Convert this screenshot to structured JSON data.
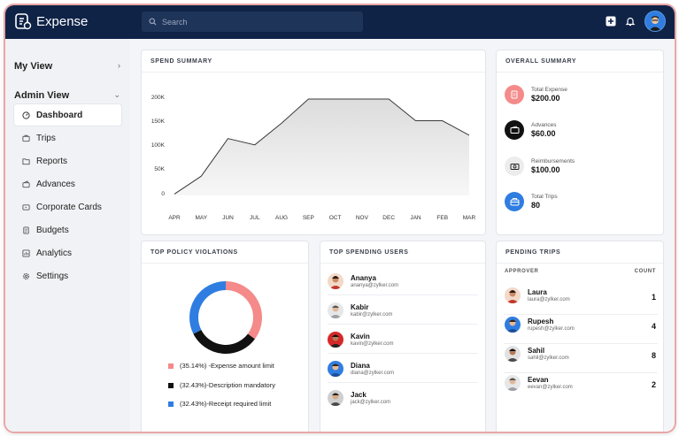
{
  "app": {
    "title": "Expense"
  },
  "search": {
    "placeholder": "Search"
  },
  "sidebar": {
    "my_view": "My View",
    "admin_view": "Admin View",
    "items": [
      {
        "label": "Dashboard",
        "icon": "dashboard-icon",
        "active": true
      },
      {
        "label": "Trips",
        "icon": "trips-icon"
      },
      {
        "label": "Reports",
        "icon": "reports-icon"
      },
      {
        "label": "Advances",
        "icon": "advances-icon"
      },
      {
        "label": "Corporate Cards",
        "icon": "corporate-cards-icon"
      },
      {
        "label": "Budgets",
        "icon": "budgets-icon"
      },
      {
        "label": "Analytics",
        "icon": "analytics-icon"
      },
      {
        "label": "Settings",
        "icon": "settings-icon"
      }
    ]
  },
  "spend_summary": {
    "title": "SPEND SUMMARY"
  },
  "chart_data": {
    "type": "area",
    "title": "SPEND SUMMARY",
    "categories": [
      "APR",
      "MAY",
      "JUN",
      "JUL",
      "AUG",
      "SEP",
      "OCT",
      "NOV",
      "DEC",
      "JAN",
      "FEB",
      "MAR"
    ],
    "values": [
      3000,
      40000,
      118000,
      105000,
      150000,
      200000,
      200000,
      200000,
      200000,
      155000,
      155000,
      125000
    ],
    "y_ticks": [
      "200K",
      "150K",
      "100K",
      "50K",
      "0"
    ],
    "ylim": [
      0,
      200000
    ],
    "grid": false,
    "colors": {
      "line": "#3b3b3b",
      "fill": "#e2e2e2"
    }
  },
  "overall_summary": {
    "title": "OVERALL SUMMARY",
    "items": [
      {
        "label": "Total Expense",
        "value": "$200.00",
        "icon": "expense-receipt-icon",
        "color": "#f48a8a"
      },
      {
        "label": "Advances",
        "value": "$60.00",
        "icon": "wallet-icon",
        "color": "#111111"
      },
      {
        "label": "Reimbursements",
        "value": "$100.00",
        "icon": "cash-icon",
        "color": "#ececec"
      },
      {
        "label": "Total Trips",
        "value": "80",
        "icon": "luggage-icon",
        "color": "#2f7de1"
      }
    ]
  },
  "policy_violations": {
    "title": "TOP POLICY VIOLATIONS",
    "items": [
      {
        "label": "(35.14%) -Expense amount limit",
        "percent": 35.14,
        "color": "#f48a8a"
      },
      {
        "label": "(32.43%)-Description mandatory",
        "percent": 32.43,
        "color": "#111111"
      },
      {
        "label": "(32.43%)-Receipt required limit",
        "percent": 32.43,
        "color": "#2f7de1"
      }
    ]
  },
  "top_users": {
    "title": "TOP SPENDING USERS",
    "users": [
      {
        "name": "Ananya",
        "email": "ananya@zylker.com",
        "color": "#c0392b"
      },
      {
        "name": "Kabir",
        "email": "kabir@zylker.com",
        "color": "#9aa0a6"
      },
      {
        "name": "Kavin",
        "email": "kavin@zylker.com",
        "color": "#d62828"
      },
      {
        "name": "Diana",
        "email": "diana@zylker.com",
        "color": "#2f7de1"
      },
      {
        "name": "Jack",
        "email": "jack@zylker.com",
        "color": "#4a4a4a"
      }
    ]
  },
  "pending_trips": {
    "title": "PENDING TRIPS",
    "col_approver": "APPROVER",
    "col_count": "COUNT",
    "rows": [
      {
        "name": "Laura",
        "email": "laura@zylker.com",
        "count": "1",
        "color": "#c0392b"
      },
      {
        "name": "Rupesh",
        "email": "rupesh@zylker.com",
        "count": "4",
        "color": "#2f7de1"
      },
      {
        "name": "Sahil",
        "email": "sahil@zylker.com",
        "count": "8",
        "color": "#4a4a4a"
      },
      {
        "name": "Eevan",
        "email": "eevan@zylker.com",
        "count": "2",
        "color": "#9aa0a6"
      }
    ]
  }
}
